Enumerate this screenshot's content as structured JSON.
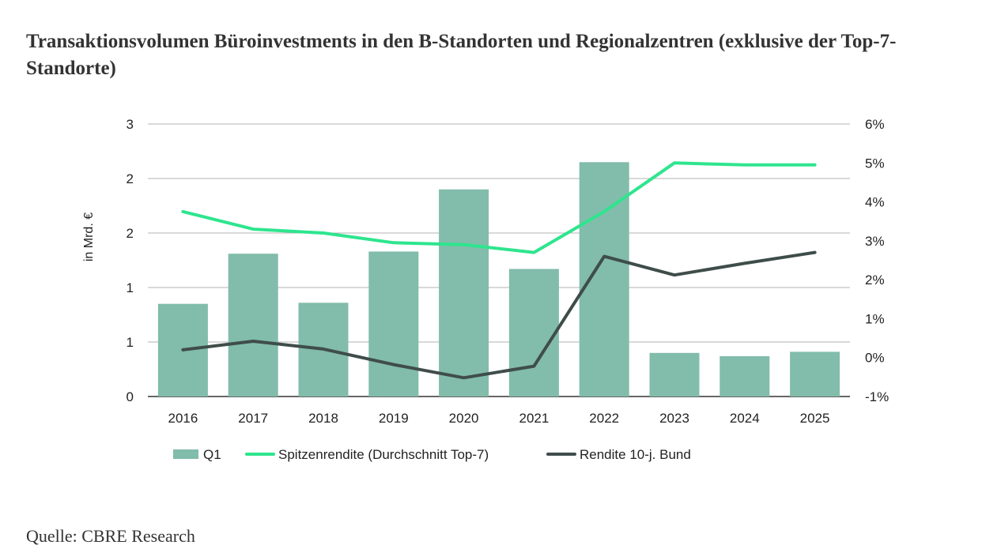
{
  "title": "Transaktionsvolumen Büroinvestments in den B-Standorten und Regionalzentren (exklusive der Top-7-Standorte)",
  "source": "Quelle: CBRE Research",
  "chart_data": {
    "type": "bar",
    "categories": [
      "2016",
      "2017",
      "2018",
      "2019",
      "2020",
      "2021",
      "2022",
      "2023",
      "2024",
      "2025"
    ],
    "ylabel": "in Mrd. €",
    "y_left_ticks": [
      "0",
      "1",
      "1",
      "2",
      "2",
      "3"
    ],
    "y_left_range": [
      0,
      2.5
    ],
    "y_right_ticks": [
      "-1%",
      "0%",
      "1%",
      "2%",
      "3%",
      "4%",
      "5%",
      "6%"
    ],
    "y_right_range": [
      -1,
      6
    ],
    "grid": true,
    "legend_position": "bottom",
    "series": [
      {
        "name": "Q1",
        "type": "bar",
        "axis": "left",
        "color": "#82bcab",
        "values": [
          0.85,
          1.31,
          0.86,
          1.33,
          1.9,
          1.17,
          2.15,
          0.4,
          0.37,
          0.41
        ]
      },
      {
        "name": "Spitzenrendite (Durchschnitt Top-7)",
        "type": "line",
        "axis": "right",
        "color": "#2ee58e",
        "values": [
          3.75,
          3.3,
          3.2,
          2.95,
          2.9,
          2.7,
          3.75,
          5.0,
          4.95,
          4.95
        ]
      },
      {
        "name": "Rendite 10-j. Bund",
        "type": "line",
        "axis": "right",
        "color": "#3f4d4a",
        "values": [
          0.2,
          0.42,
          0.22,
          -0.18,
          -0.52,
          -0.22,
          2.6,
          2.12,
          2.42,
          2.7
        ]
      }
    ]
  }
}
